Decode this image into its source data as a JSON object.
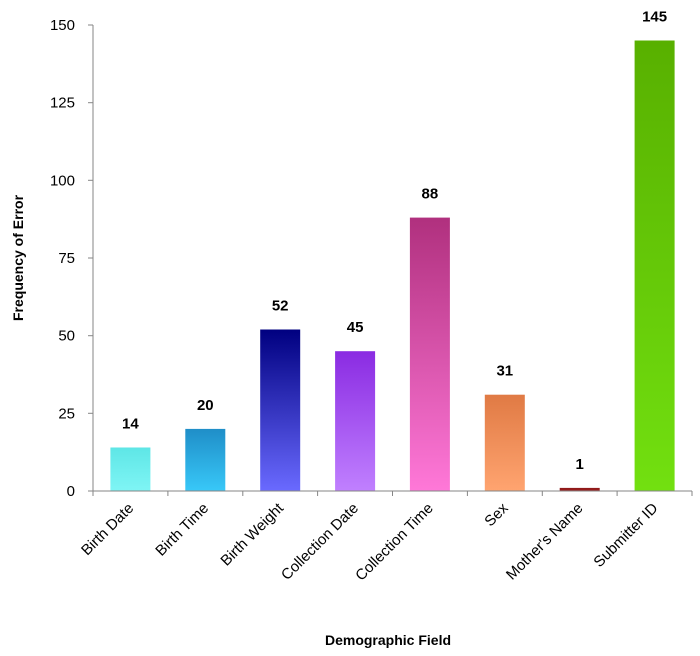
{
  "chart_data": {
    "type": "bar",
    "title": "",
    "xlabel": "Demographic Field",
    "ylabel": "Frequency  of Error",
    "categories": [
      "Birth Date",
      "Birth Time",
      "Birth Weight",
      "Collection Date",
      "Collection Time",
      "Sex",
      "Mother's Name",
      "Submitter ID"
    ],
    "values": [
      14,
      20,
      52,
      45,
      88,
      31,
      1,
      145
    ],
    "data_labels": [
      "14",
      "20",
      "52",
      "45",
      "88",
      "31",
      "1",
      "145"
    ],
    "ylim": [
      0,
      150
    ],
    "yticks": [
      0,
      25,
      50,
      75,
      100,
      125,
      150
    ],
    "grid": false,
    "legend": "none",
    "bar_gradients": [
      [
        "#5ee6e6",
        "#7ff5f5"
      ],
      [
        "#1f8ec8",
        "#38c8f8"
      ],
      [
        "#000080",
        "#6a6aff"
      ],
      [
        "#8a2be2",
        "#c080ff"
      ],
      [
        "#b0307e",
        "#ff78d8"
      ],
      [
        "#e07a44",
        "#ffa470"
      ],
      [
        "#8b1a1a",
        "#a01c1c"
      ],
      [
        "#58b000",
        "#72e010"
      ]
    ],
    "axis_color": "#868686"
  }
}
